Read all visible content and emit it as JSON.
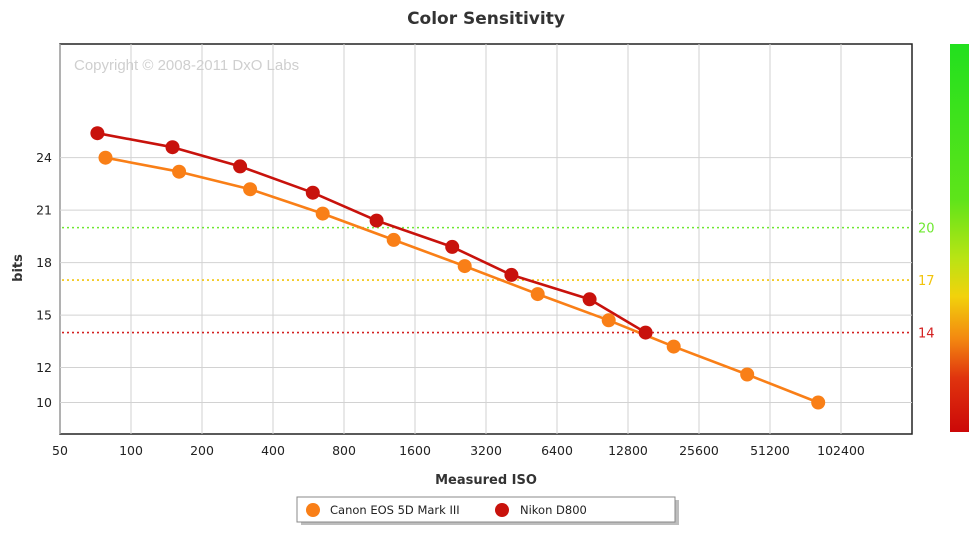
{
  "chart_data": {
    "type": "line",
    "title": "Color Sensitivity",
    "xlabel": "Measured ISO",
    "ylabel": "bits",
    "x_scale": "log2",
    "xlim": [
      50,
      204800
    ],
    "ylim": [
      8.2,
      30.5
    ],
    "x_ticks": [
      {
        "value": 50,
        "label": "50"
      },
      {
        "value": 100,
        "label": "100"
      },
      {
        "value": 200,
        "label": "200"
      },
      {
        "value": 400,
        "label": "400"
      },
      {
        "value": 800,
        "label": "800"
      },
      {
        "value": 1600,
        "label": "1600"
      },
      {
        "value": 3200,
        "label": "3200"
      },
      {
        "value": 6400,
        "label": "6400"
      },
      {
        "value": 12800,
        "label": "12800"
      },
      {
        "value": 25600,
        "label": "25600"
      },
      {
        "value": 51200,
        "label": "51200"
      },
      {
        "value": 102400,
        "label": "102400"
      }
    ],
    "y_ticks": [
      {
        "value": 10,
        "label": "10"
      },
      {
        "value": 12,
        "label": "12"
      },
      {
        "value": 15,
        "label": "15"
      },
      {
        "value": 18,
        "label": "18"
      },
      {
        "value": 21,
        "label": "21"
      },
      {
        "value": 24,
        "label": "24"
      }
    ],
    "reference_lines": [
      {
        "y": 20,
        "label": "20",
        "color": "#6ee830"
      },
      {
        "y": 17,
        "label": "17",
        "color": "#f2c40a"
      },
      {
        "y": 14,
        "label": "14",
        "color": "#d42020"
      }
    ],
    "watermark": "Copyright © 2008-2011 DxO Labs",
    "grid": true,
    "legend_position": "bottom",
    "series": [
      {
        "name": "Canon EOS 5D Mark III",
        "color": "#f97f17",
        "points": [
          [
            78,
            24.0
          ],
          [
            160,
            23.2
          ],
          [
            320,
            22.2
          ],
          [
            650,
            20.8
          ],
          [
            1300,
            19.3
          ],
          [
            2600,
            17.8
          ],
          [
            5300,
            16.2
          ],
          [
            10600,
            14.7
          ],
          [
            20000,
            13.2
          ],
          [
            41000,
            11.6
          ],
          [
            82000,
            10.0
          ]
        ]
      },
      {
        "name": "Nikon D800",
        "color": "#c8120c",
        "points": [
          [
            72,
            25.4
          ],
          [
            150,
            24.6
          ],
          [
            290,
            23.5
          ],
          [
            590,
            22.0
          ],
          [
            1100,
            20.4
          ],
          [
            2300,
            18.9
          ],
          [
            4100,
            17.3
          ],
          [
            8800,
            15.9
          ],
          [
            15200,
            14.0
          ]
        ]
      }
    ],
    "color_scale": [
      "#22e01e",
      "#8ee21c",
      "#f2d60c",
      "#f07e10",
      "#d00c0c"
    ]
  }
}
